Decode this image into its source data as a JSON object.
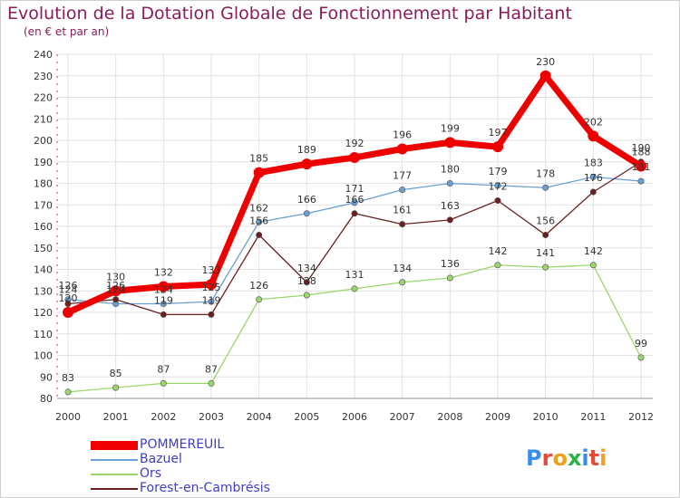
{
  "header": {
    "title": "Evolution de la Dotation Globale de Fonctionnement par Habitant",
    "subtitle": "(en € et par an)"
  },
  "logo": {
    "text": "Proxiti",
    "colors": [
      "#3a8ee6",
      "#e64a3a",
      "#f0a020",
      "#2bb24c",
      "#3a8ee6",
      "#e64a3a",
      "#f0a020"
    ]
  },
  "chart_data": {
    "type": "line",
    "title": "Evolution de la Dotation Globale de Fonctionnement par Habitant",
    "subtitle": "(en € et par an)",
    "x": [
      "2000",
      "2001",
      "2002",
      "2003",
      "2004",
      "2005",
      "2006",
      "2007",
      "2008",
      "2009",
      "2010",
      "2011",
      "2012"
    ],
    "ylim": [
      80,
      240
    ],
    "yticks": [
      80,
      90,
      100,
      110,
      120,
      130,
      140,
      150,
      160,
      170,
      180,
      190,
      200,
      210,
      220,
      230,
      240
    ],
    "grid": true,
    "legend_position": "bottom-left",
    "series": [
      {
        "name": "POMMEREUIL",
        "color": "#ee0000",
        "values": [
          120,
          130,
          132,
          133,
          185,
          189,
          192,
          196,
          199,
          197,
          230,
          202,
          188
        ],
        "labels": [
          "120",
          "130",
          "132",
          "133",
          "185",
          "189",
          "192",
          "196",
          "199",
          "197",
          "230",
          "202",
          "188"
        ]
      },
      {
        "name": "Bazuel",
        "color": "#6a9fd4",
        "values": [
          126,
          124,
          124,
          125,
          162,
          166,
          171,
          177,
          180,
          179,
          178,
          183,
          181
        ],
        "labels": [
          "126",
          "124",
          "124",
          "125",
          "162",
          "166",
          "171",
          "177",
          "180",
          "179",
          "178",
          "183",
          "181"
        ]
      },
      {
        "name": "Ors",
        "color": "#9ad66a",
        "values": [
          83,
          85,
          87,
          87,
          126,
          128,
          131,
          134,
          136,
          142,
          141,
          142,
          99
        ],
        "labels": [
          "83",
          "85",
          "87",
          "87",
          "126",
          "128",
          "131",
          "134",
          "136",
          "142",
          "141",
          "142",
          "99"
        ]
      },
      {
        "name": "Forest-en-Cambrésis",
        "color": "#6b1f1f",
        "values": [
          124,
          126,
          119,
          119,
          156,
          134,
          166,
          161,
          163,
          172,
          156,
          176,
          190
        ],
        "labels": [
          "124",
          "126",
          "119",
          "119",
          "156",
          "134",
          "166",
          "161",
          "163",
          "172",
          "156",
          "176",
          "190"
        ]
      }
    ]
  }
}
